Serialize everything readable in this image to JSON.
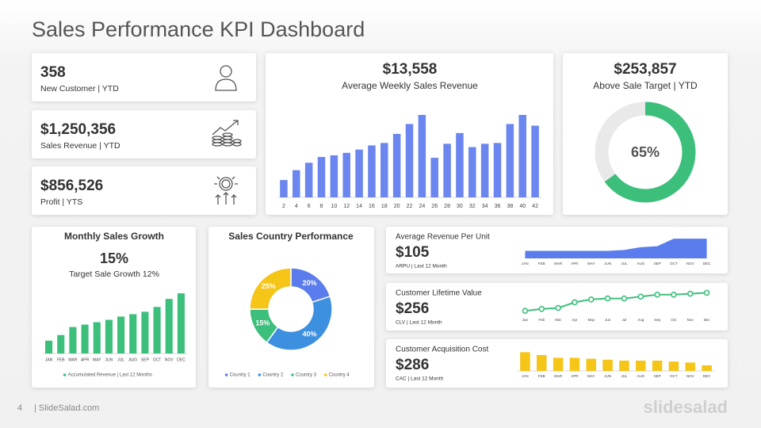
{
  "title": "Sales Performance KPI Dashboard",
  "kpi_cards": [
    {
      "value": "358",
      "label": "New Customer | YTD"
    },
    {
      "value": "$1,250,356",
      "label": "Sales Revenue | YTD"
    },
    {
      "value": "$856,526",
      "label": "Profit | YTS"
    }
  ],
  "footer": {
    "page": "4",
    "source": "| SlideSalad.com",
    "brand": "slidesalad"
  },
  "chart_data": [
    {
      "type": "bar",
      "title": "$13,558",
      "subtitle": "Average Weekly Sales Revenue",
      "x": [
        2,
        4,
        6,
        8,
        10,
        12,
        14,
        16,
        18,
        20,
        22,
        24,
        26,
        28,
        30,
        32,
        34,
        36,
        38,
        40,
        42
      ],
      "values": [
        21,
        33,
        42,
        49,
        51,
        54,
        58,
        63,
        66,
        77,
        89,
        100,
        48,
        65,
        78,
        61,
        65,
        66,
        89,
        100,
        87
      ],
      "color": "#6b86ee",
      "xlim": [
        1,
        43
      ],
      "ylim": [
        0,
        100
      ]
    },
    {
      "type": "gauge",
      "title": "$253,857",
      "subtitle": "Above Sale Target | YTD",
      "values": [
        65
      ],
      "value_labels": [
        "65%"
      ],
      "color": "#3dbf7c",
      "track_color": "#e9e9e9",
      "ylim": [
        0,
        100
      ]
    },
    {
      "type": "bar",
      "title": "Monthly Sales Growth",
      "headline": "15%",
      "subtitle": "Target Sale Growth 12%",
      "categories": [
        "JAN",
        "FEB",
        "MAR",
        "APR",
        "MAY",
        "JUN",
        "JUL",
        "AUG",
        "SEP",
        "OCT",
        "NOV",
        "DEC"
      ],
      "series": [
        {
          "name": "Accumulated Revenue | Last 12 Months",
          "color": "#3dbf7c",
          "values": [
            16,
            23,
            33,
            36,
            39,
            42,
            46,
            49,
            52,
            58,
            68,
            75
          ]
        }
      ],
      "ylim": [
        0,
        80
      ],
      "legend": "bottom"
    },
    {
      "type": "donut",
      "title": "Sales Country Performance",
      "categories": [
        "Country 1",
        "Country 2",
        "Country 3",
        "Country 4"
      ],
      "values": [
        20,
        40,
        15,
        25
      ],
      "value_labels": [
        "20%",
        "40%",
        "15%",
        "25%"
      ],
      "colors": [
        "#5b7cec",
        "#3d8fe0",
        "#3dbf7c",
        "#f5c518"
      ],
      "legend": "bottom"
    },
    {
      "type": "area",
      "title": "Average Revenue Per Unit",
      "headline": "$105",
      "subtitle": "ARPU | Last 12 Month",
      "categories": [
        "JAN",
        "FEB",
        "MAR",
        "APR",
        "MAY",
        "JUN",
        "JUL",
        "AUG",
        "SEP",
        "OCT",
        "NOV",
        "DEC"
      ],
      "values": [
        8,
        8,
        8,
        8,
        8,
        8,
        9,
        12,
        13,
        21,
        21,
        21
      ],
      "color": "#5b7cec",
      "ylim": [
        0,
        22
      ]
    },
    {
      "type": "line",
      "title": "Customer Lifetime Value",
      "headline": "$256",
      "subtitle": "CLV | Last 12 Month",
      "categories": [
        "Jan",
        "Feb",
        "Mar",
        "Apr",
        "May",
        "Jun",
        "Jul",
        "Aug",
        "Sep",
        "Oct",
        "Nov",
        "Dec"
      ],
      "values": [
        4,
        6,
        7,
        13,
        16,
        17,
        17,
        19,
        21,
        21,
        22,
        23
      ],
      "color": "#3dbf7c",
      "ylim": [
        0,
        25
      ]
    },
    {
      "type": "bar",
      "title": "Customer Acquisition Cost",
      "headline": "$286",
      "subtitle": "CAC | Last 12 Month",
      "categories": [
        "JAN",
        "FEB",
        "MAR",
        "APR",
        "MAY",
        "JUN",
        "JUL",
        "AUG",
        "SEP",
        "OCT",
        "NOV",
        "DEC"
      ],
      "values": [
        20,
        17,
        14,
        14,
        13,
        12,
        11,
        11,
        11,
        10,
        9,
        6
      ],
      "color": "#f5c518",
      "ylim": [
        0,
        22
      ]
    }
  ]
}
